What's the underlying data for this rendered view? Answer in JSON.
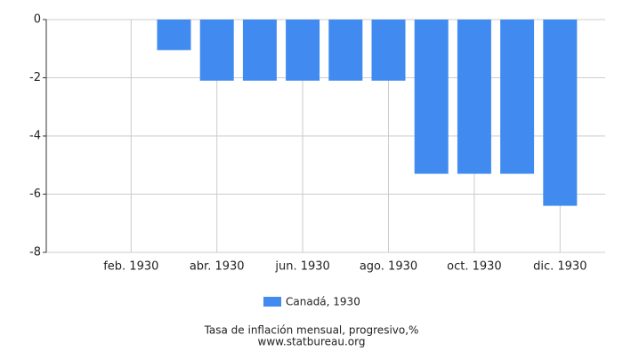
{
  "chart_data": {
    "type": "bar",
    "categories": [
      null,
      "feb. 1930",
      null,
      "abr. 1930",
      null,
      "jun. 1930",
      null,
      "ago. 1930",
      null,
      "oct. 1930",
      null,
      "dic. 1930"
    ],
    "series": [
      {
        "name": "Canadá, 1930",
        "color": "#418bf0",
        "values": [
          0,
          0,
          -1.05,
          -2.1,
          -2.1,
          -2.1,
          -2.1,
          -2.1,
          -5.3,
          -5.3,
          -5.3,
          -6.4
        ]
      }
    ],
    "ylim": [
      -8,
      0
    ],
    "yticks": [
      -8,
      -6,
      -4,
      -2,
      0
    ],
    "grid": true,
    "title": "Tasa de inflación mensual, progresivo,%",
    "subtitle": "www.statbureau.org"
  }
}
